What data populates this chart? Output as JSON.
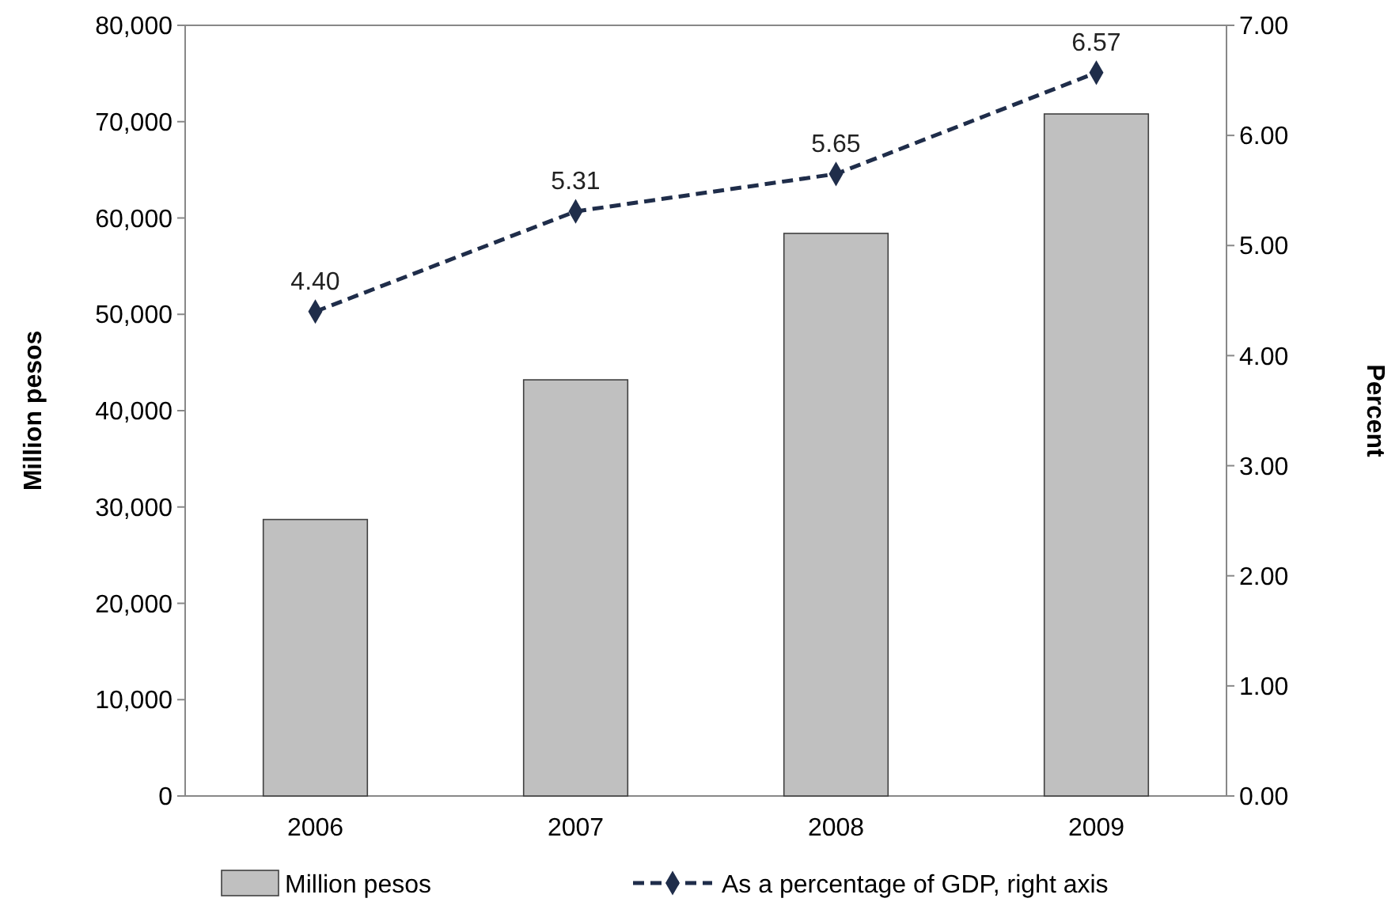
{
  "chart_data": {
    "type": "bar",
    "categories": [
      "2006",
      "2007",
      "2008",
      "2009"
    ],
    "ylabel": "Million pesos",
    "y2label": "Percent",
    "series": [
      {
        "name": "Million pesos",
        "color": "#c0c0c0",
        "values": [
          28700,
          43200,
          58400,
          70800
        ]
      },
      {
        "name": "As a percentage of GDP, right axis",
        "type": "line",
        "axis": "y2",
        "color": "#1f2d4a",
        "values": [
          4.4,
          5.31,
          5.65,
          6.57
        ],
        "value_labels": [
          "4.40",
          "5.31",
          "5.65",
          "6.57"
        ],
        "marker": "diamond",
        "line_style": "dashed"
      }
    ],
    "ylim": [
      0,
      80000
    ],
    "yticks": [
      {
        "value": 0,
        "label": "0"
      },
      {
        "value": 10000,
        "label": "10,000"
      },
      {
        "value": 20000,
        "label": "20,000"
      },
      {
        "value": 30000,
        "label": "30,000"
      },
      {
        "value": 40000,
        "label": "40,000"
      },
      {
        "value": 50000,
        "label": "50,000"
      },
      {
        "value": 60000,
        "label": "60,000"
      },
      {
        "value": 70000,
        "label": "70,000"
      },
      {
        "value": 80000,
        "label": "80,000"
      }
    ],
    "y2lim": [
      0,
      7
    ],
    "y2ticks": [
      {
        "value": 0,
        "label": "0.00"
      },
      {
        "value": 1,
        "label": "1.00"
      },
      {
        "value": 2,
        "label": "2.00"
      },
      {
        "value": 3,
        "label": "3.00"
      },
      {
        "value": 4,
        "label": "4.00"
      },
      {
        "value": 5,
        "label": "5.00"
      },
      {
        "value": 6,
        "label": "6.00"
      },
      {
        "value": 7,
        "label": "7.00"
      }
    ],
    "grid": false,
    "legend": "bottom"
  }
}
